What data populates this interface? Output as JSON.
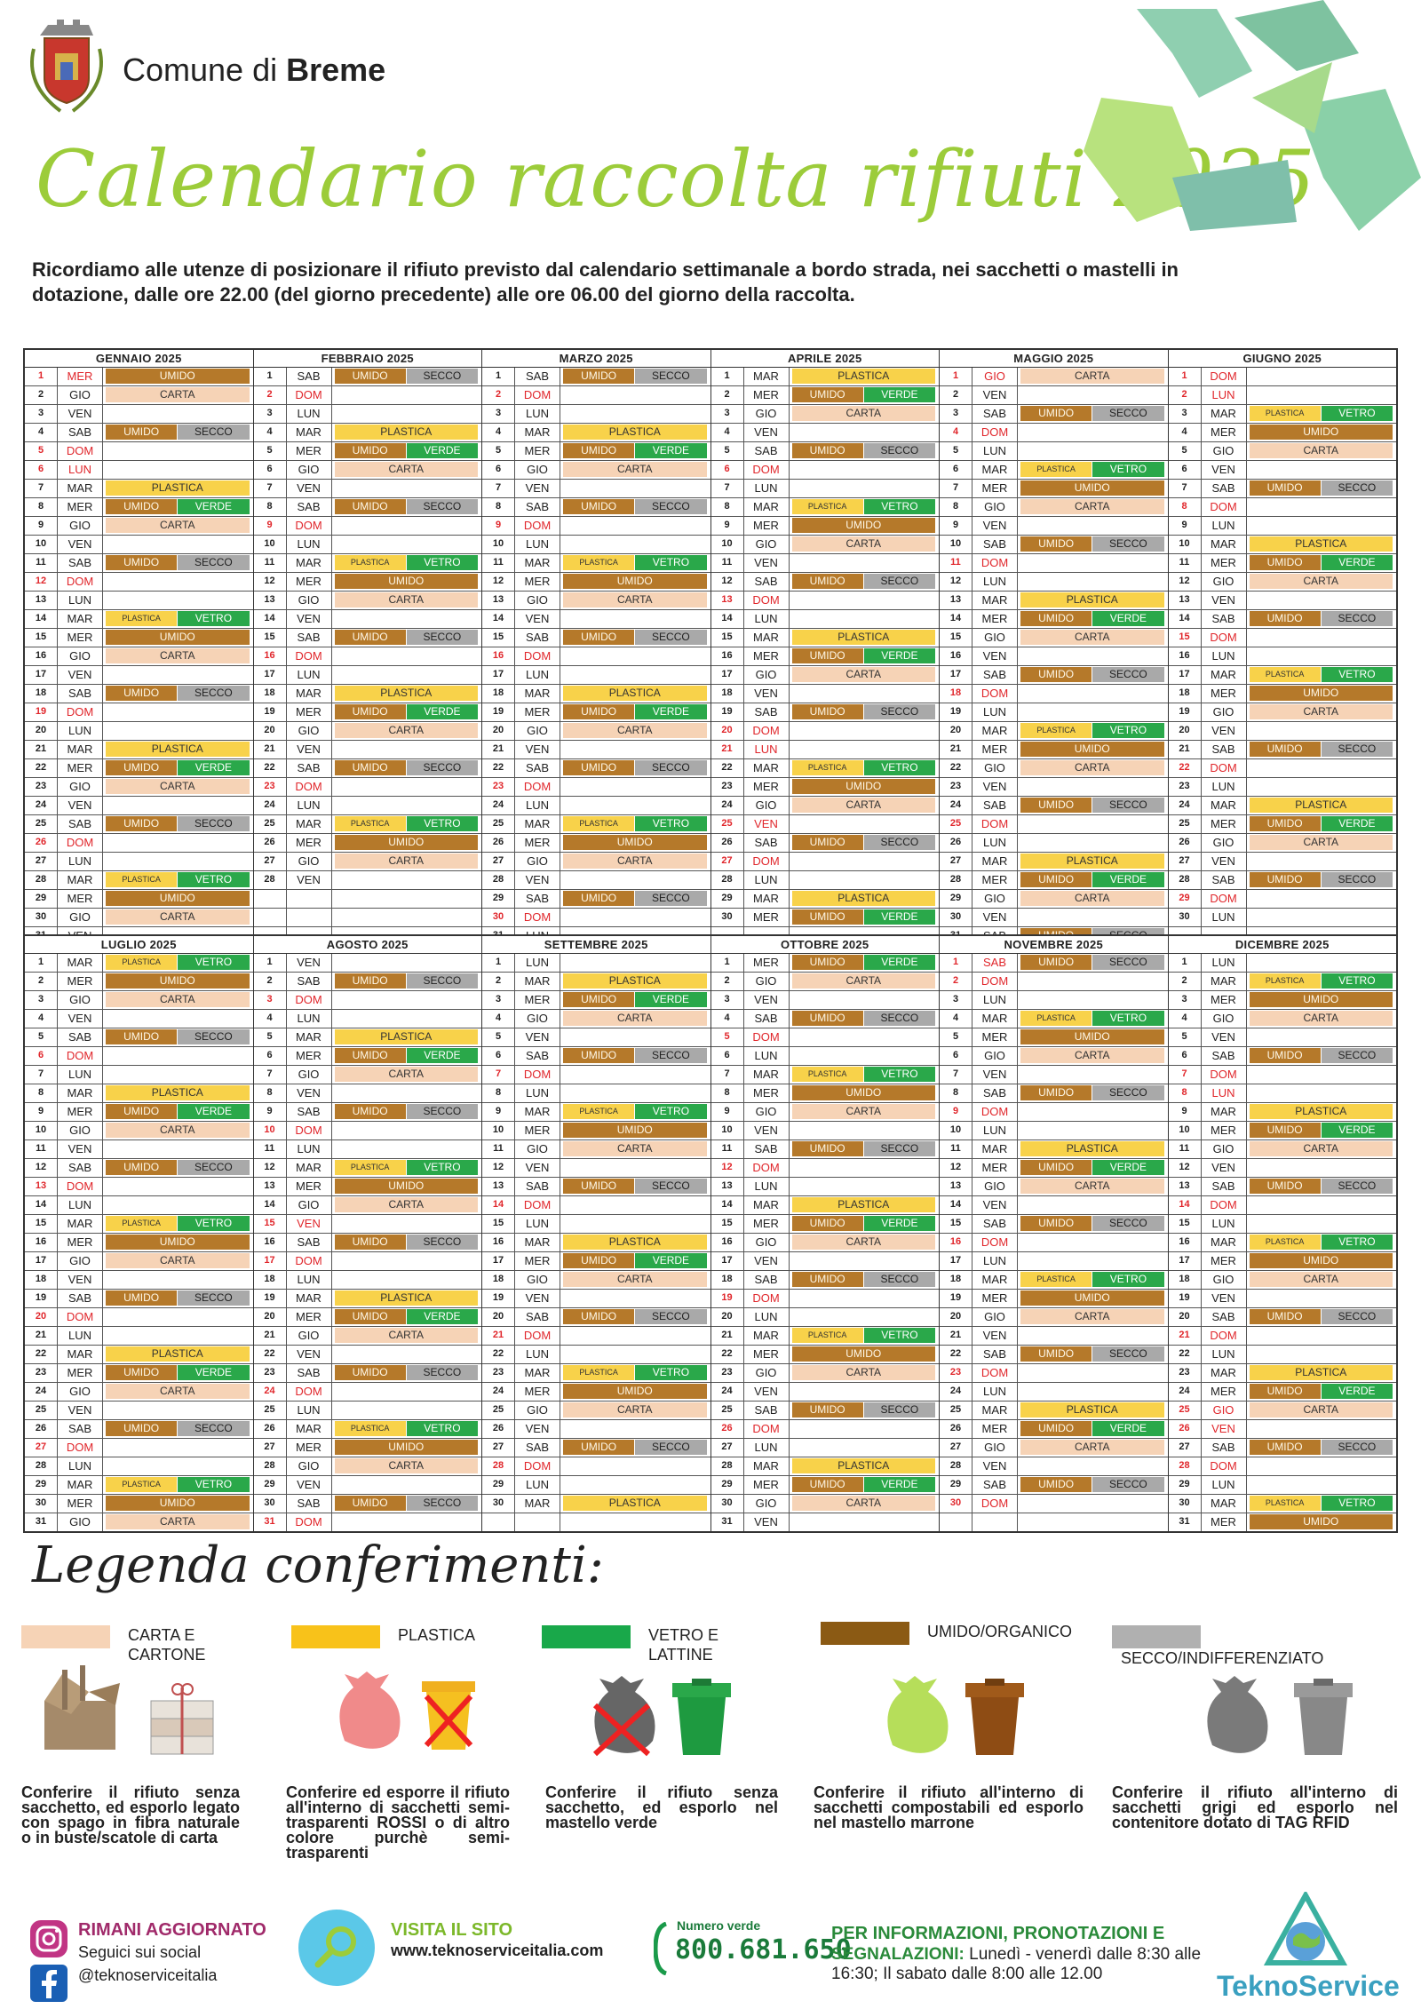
{
  "header": {
    "comune_prefix": "Comune di ",
    "comune_name": "Breme",
    "title": "Calendario raccolta rifiuti 2025",
    "intro": "Ricordiamo alle utenze di posizionare il rifiuto previsto dal calendario settimanale a bordo strada, nei sacchetti o mastelli in dotazione, dalle ore 22.00 (del giorno precedente) alle ore 06.00 del giorno della raccolta."
  },
  "colors": {
    "carta": "#f6d3b6",
    "plastica": "#f8d24a",
    "vetro": "#2aa84a",
    "umido": "#b5792a",
    "secco": "#a9a9a9",
    "title": "#9ccc3a",
    "red_day": "#e0262b"
  },
  "labels": {
    "UMIDO": "UMIDO",
    "SECCO": "SECCO",
    "CARTA": "CARTA",
    "PLASTICA": "PLASTICA",
    "VETRO": "VETRO"
  },
  "month_names": [
    "GENNAIO 2025",
    "FEBBRAIO 2025",
    "MARZO 2025",
    "APRILE 2025",
    "MAGGIO 2025",
    "GIUGNO 2025",
    "LUGLIO 2025",
    "AGOSTO 2025",
    "SETTEMBRE 2025",
    "OTTOBRE 2025",
    "NOVEMBRE 2025",
    "DICEMBRE 2025"
  ],
  "legend": {
    "title": "Legenda conferimenti:",
    "items": [
      {
        "label": "CARTA E CARTONE",
        "desc": "Conferire il rifiuto senza sacchetto, ed esporlo legato con spago in fibra naturale o in buste/scatole di carta"
      },
      {
        "label": "PLASTICA",
        "desc": "Conferire ed esporre il rifiuto all'interno di sacchetti semi-trasparenti ROSSI o di altro colore purchè semi-trasparenti"
      },
      {
        "label": "VETRO E LATTINE",
        "desc": "Conferire il rifiuto senza sacchetto, ed esporlo nel mastello verde"
      },
      {
        "label": "UMIDO/ORGANICO",
        "desc": "Conferire il rifiuto all'interno di sacchetti compostabili ed esporlo nel mastello marrone"
      },
      {
        "label": "SECCO/INDIFFERENZIATO",
        "desc": "Conferire il rifiuto all'interno di sacchetti grigi ed esporlo nel contenitore dotato di TAG RFID"
      }
    ]
  },
  "footer": {
    "social_title": "RIMANI AGGIORNATO",
    "social_sub": "Seguici sui social",
    "social_handle": "@teknoserviceitalia",
    "site_title": "VISITA IL SITO",
    "site_url": "www.teknoserviceitalia.com",
    "numero_label": "Numero verde",
    "numero": "800.681.650",
    "info_title": "PER INFORMAZIONI, PRONOTAZIONI E",
    "info_title2": "SEGNALAZIONI:",
    "info_hours": "Lunedì - venerdì dalle 8:30 alle 16:30; Il sabato dalle 8:00 alle 12.00",
    "brand": "TeknoService"
  }
}
